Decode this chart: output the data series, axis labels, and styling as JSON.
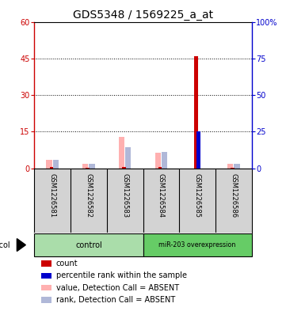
{
  "title": "GDS5348 / 1569225_a_at",
  "samples": [
    "GSM1226581",
    "GSM1226582",
    "GSM1226583",
    "GSM1226584",
    "GSM1226585",
    "GSM1226586"
  ],
  "count_values": [
    0.4,
    0.3,
    0.5,
    0.5,
    46,
    0.3
  ],
  "rank_values": [
    0,
    0,
    0,
    0,
    25,
    0
  ],
  "absent_value_values": [
    3.5,
    1.8,
    13,
    6.5,
    0,
    1.8
  ],
  "absent_rank_values": [
    5.5,
    3.0,
    14.5,
    11.0,
    0,
    3.0
  ],
  "ylim_left": [
    0,
    60
  ],
  "ylim_right": [
    0,
    100
  ],
  "yticks_left": [
    0,
    15,
    30,
    45,
    60
  ],
  "ytick_labels_left": [
    "0",
    "15",
    "30",
    "45",
    "60"
  ],
  "yticks_right": [
    0,
    25,
    50,
    75,
    100
  ],
  "ytick_labels_right": [
    "0",
    "25",
    "50",
    "75",
    "100%"
  ],
  "color_count": "#CC0000",
  "color_rank": "#0000CC",
  "color_absent_value": "#FFB0B0",
  "color_absent_rank": "#B0B8D8",
  "grid_color": "black",
  "grid_linestyle": ":",
  "bg_color": "#ffffff",
  "sample_area_bg": "#d3d3d3",
  "control_color": "#aaddaa",
  "overexp_color": "#66cc66",
  "font_size_title": 10,
  "font_size_tick": 7,
  "font_size_legend": 7,
  "font_size_sample": 6,
  "font_size_protocol": 7
}
